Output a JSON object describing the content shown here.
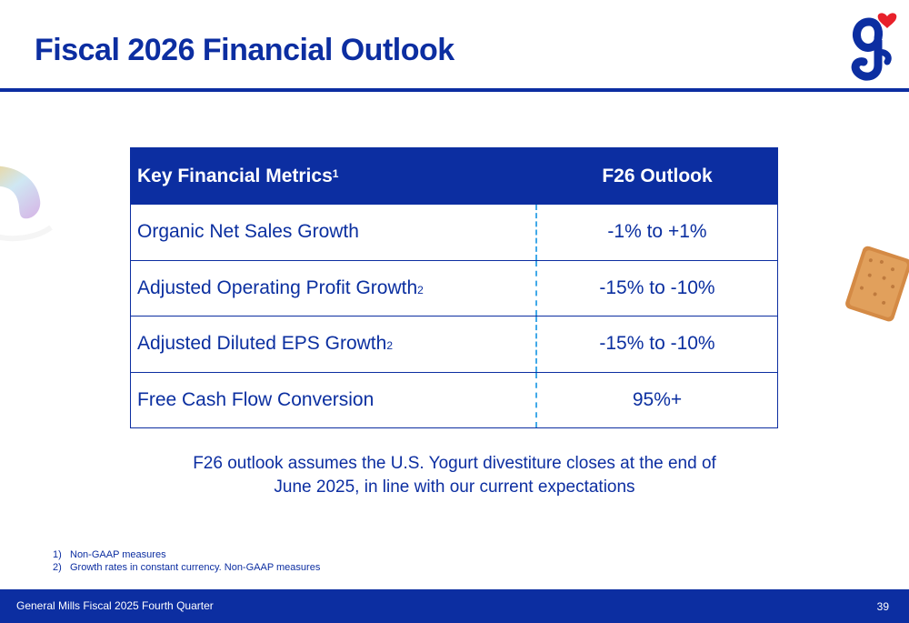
{
  "header": {
    "title": "Fiscal 2026 Financial Outlook"
  },
  "brand": {
    "primary_color": "#0c2ea1",
    "accent_color": "#e8202a",
    "divider_color": "#41a9e8"
  },
  "table": {
    "header": {
      "metric": "Key Financial Metrics",
      "metric_note": "1",
      "outlook": "F26 Outlook"
    },
    "rows": [
      {
        "metric": "Organic Net Sales Growth",
        "note": "",
        "outlook": "-1% to +1%"
      },
      {
        "metric": "Adjusted Operating Profit Growth",
        "note": "2",
        "outlook": "-15% to -10%"
      },
      {
        "metric": "Adjusted Diluted EPS Growth",
        "note": "2",
        "outlook": "-15% to -10%"
      },
      {
        "metric": "Free Cash Flow Conversion",
        "note": "",
        "outlook": "95%+"
      }
    ]
  },
  "note": {
    "line1": "F26 outlook assumes the U.S. Yogurt divestiture closes at the end of",
    "line2": "June 2025, in line with our current expectations"
  },
  "footnotes": [
    {
      "num": "1)",
      "text": "Non-GAAP measures"
    },
    {
      "num": "2)",
      "text": "Growth rates in constant currency.  Non-GAAP measures"
    }
  ],
  "footer": {
    "label": "General Mills Fiscal 2025 Fourth Quarter",
    "page": "39"
  }
}
